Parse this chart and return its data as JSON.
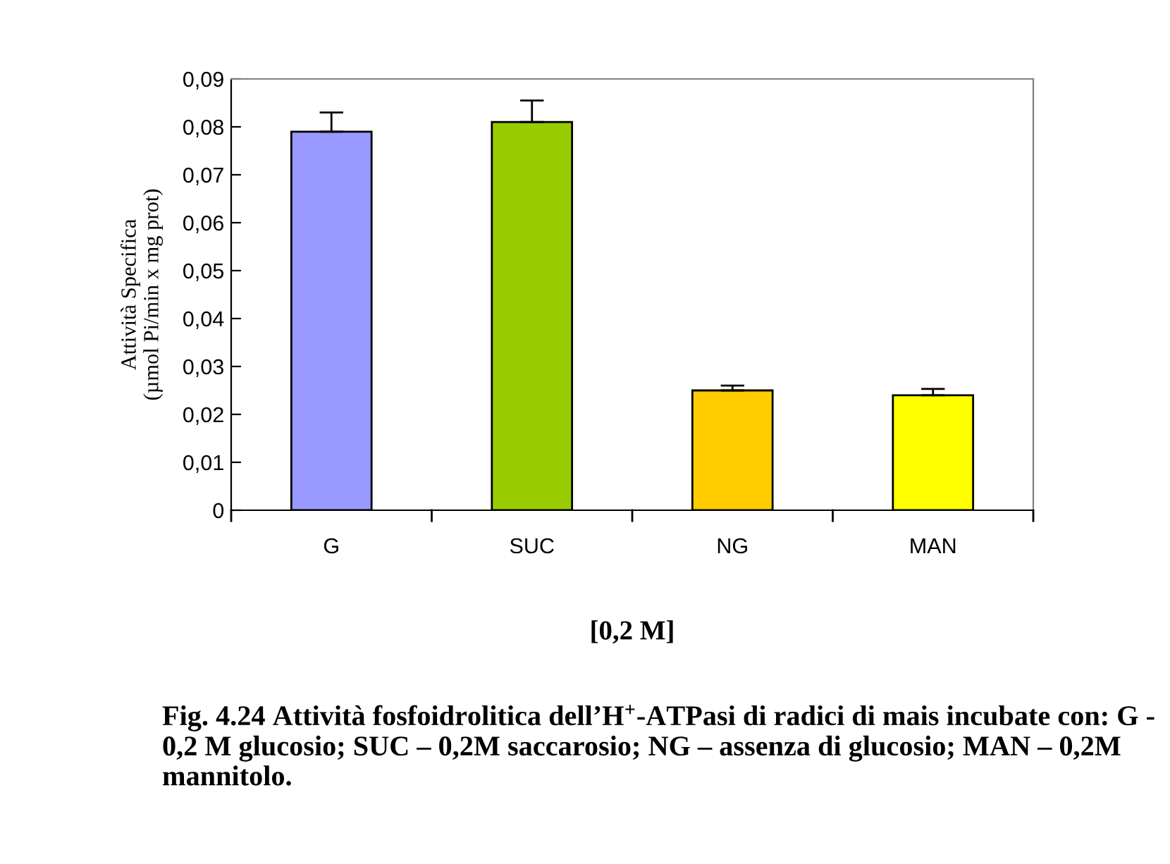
{
  "chart_data": {
    "type": "bar",
    "categories": [
      "G",
      "SUC",
      "NG",
      "MAN"
    ],
    "values": [
      0.079,
      0.081,
      0.025,
      0.024
    ],
    "colors": [
      "#9999ff",
      "#99cc00",
      "#ffcc00",
      "#ffff00"
    ],
    "errors": [
      [
        0.079,
        0.083
      ],
      [
        0.081,
        0.0855
      ],
      [
        0.025,
        0.026
      ],
      [
        0.024,
        0.0253
      ]
    ],
    "ylabel": "Attività Specifica\n(µmol Pi/min x mg prot)",
    "xlabel": "[0,2 M]",
    "ylim": [
      0,
      0.09
    ],
    "yticks": [
      {
        "value": 0,
        "label": "0"
      },
      {
        "value": 0.01,
        "label": "0,01"
      },
      {
        "value": 0.02,
        "label": "0,02"
      },
      {
        "value": 0.03,
        "label": "0,03"
      },
      {
        "value": 0.04,
        "label": "0,04"
      },
      {
        "value": 0.05,
        "label": "0,05"
      },
      {
        "value": 0.06,
        "label": "0,06"
      },
      {
        "value": 0.07,
        "label": "0,07"
      },
      {
        "value": 0.08,
        "label": "0,08"
      },
      {
        "value": 0.09,
        "label": "0,09"
      }
    ],
    "grid": false,
    "annotations": [
      "Fig. 4.24 Attività fosfoidrolitica dell’H$^{+}$-ATPasi di radici di mais incubate con: G - 0,2 M glucosio; SUC – 0,2M saccarosio; NG – assenza di glucosio; MAN – 0,2M mannitolo."
    ]
  }
}
